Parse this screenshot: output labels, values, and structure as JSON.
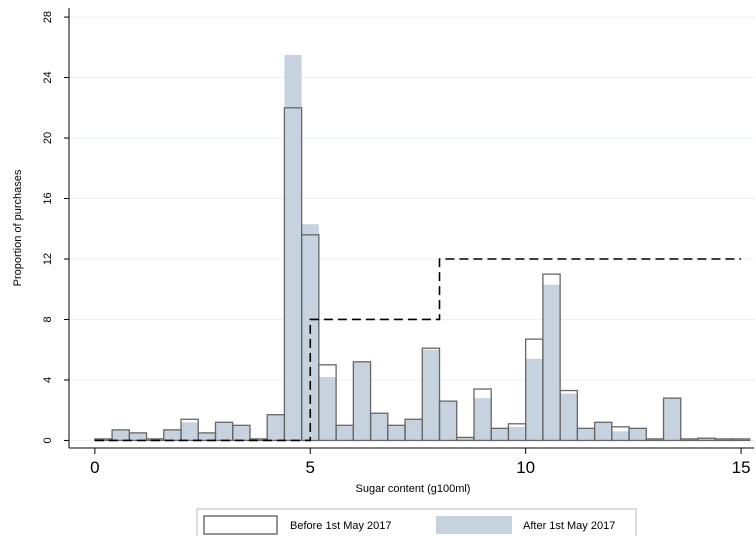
{
  "chart_data": {
    "type": "bar",
    "xlabel": "Sugar content (g100ml)",
    "ylabel": "Proportion of purchases",
    "xlim": [
      -0.6,
      15.3
    ],
    "ylim": [
      -0.5,
      28.6
    ],
    "xticks": [
      0,
      5,
      10,
      15
    ],
    "xtick_labels": [
      "0",
      "5",
      "10",
      "15"
    ],
    "yticks": [
      0,
      4,
      8,
      12,
      16,
      20,
      24,
      28
    ],
    "ytick_labels": [
      "0",
      "4",
      "8",
      "12",
      "16",
      "20",
      "24",
      "28"
    ],
    "grid": true,
    "legend_position": "bottom",
    "bin_width": 0.4,
    "bin_starts": [
      0,
      0.4,
      0.8,
      1.2,
      1.6,
      2.0,
      2.4,
      2.8,
      3.2,
      3.6,
      4.0,
      4.4,
      4.8,
      5.2,
      5.6,
      6.0,
      6.4,
      6.8,
      7.2,
      7.6,
      8.0,
      8.4,
      8.8,
      9.2,
      9.6,
      10.0,
      10.4,
      10.8,
      11.2,
      11.6,
      12.0,
      12.4,
      12.8,
      13.2,
      13.6,
      14.0,
      14.4,
      14.8
    ],
    "series": [
      {
        "name": "Before 1st May 2017",
        "style": "outline",
        "color": "#666666",
        "values": [
          0.1,
          0.7,
          0.5,
          0.1,
          0.7,
          1.4,
          0.5,
          1.2,
          1.0,
          0.1,
          1.7,
          22.0,
          13.6,
          5.0,
          1.0,
          5.2,
          1.8,
          1.0,
          1.4,
          6.1,
          2.6,
          0.2,
          3.4,
          0.8,
          1.1,
          6.7,
          11.0,
          3.3,
          0.8,
          1.2,
          0.9,
          0.8,
          0.1,
          2.8,
          0.1,
          0.15,
          0.1,
          0.1
        ]
      },
      {
        "name": "After 1st May 2017",
        "style": "filled",
        "color": "#c6d3de",
        "values": [
          0.1,
          0.7,
          0.5,
          0.1,
          0.7,
          1.2,
          0.5,
          1.2,
          1.0,
          0.1,
          1.7,
          25.5,
          14.3,
          4.2,
          1.0,
          5.2,
          1.8,
          1.0,
          1.4,
          6.0,
          2.6,
          0.2,
          2.8,
          0.8,
          0.9,
          5.4,
          10.3,
          3.1,
          0.8,
          1.2,
          0.6,
          0.8,
          0.1,
          2.8,
          0.1,
          0.15,
          0.1,
          0.1
        ]
      }
    ],
    "step_line": {
      "style": "dashed",
      "color": "#000000",
      "points": [
        [
          0,
          0
        ],
        [
          5,
          0
        ],
        [
          5,
          8
        ],
        [
          8,
          8
        ],
        [
          8,
          12
        ],
        [
          15,
          12
        ]
      ]
    }
  }
}
